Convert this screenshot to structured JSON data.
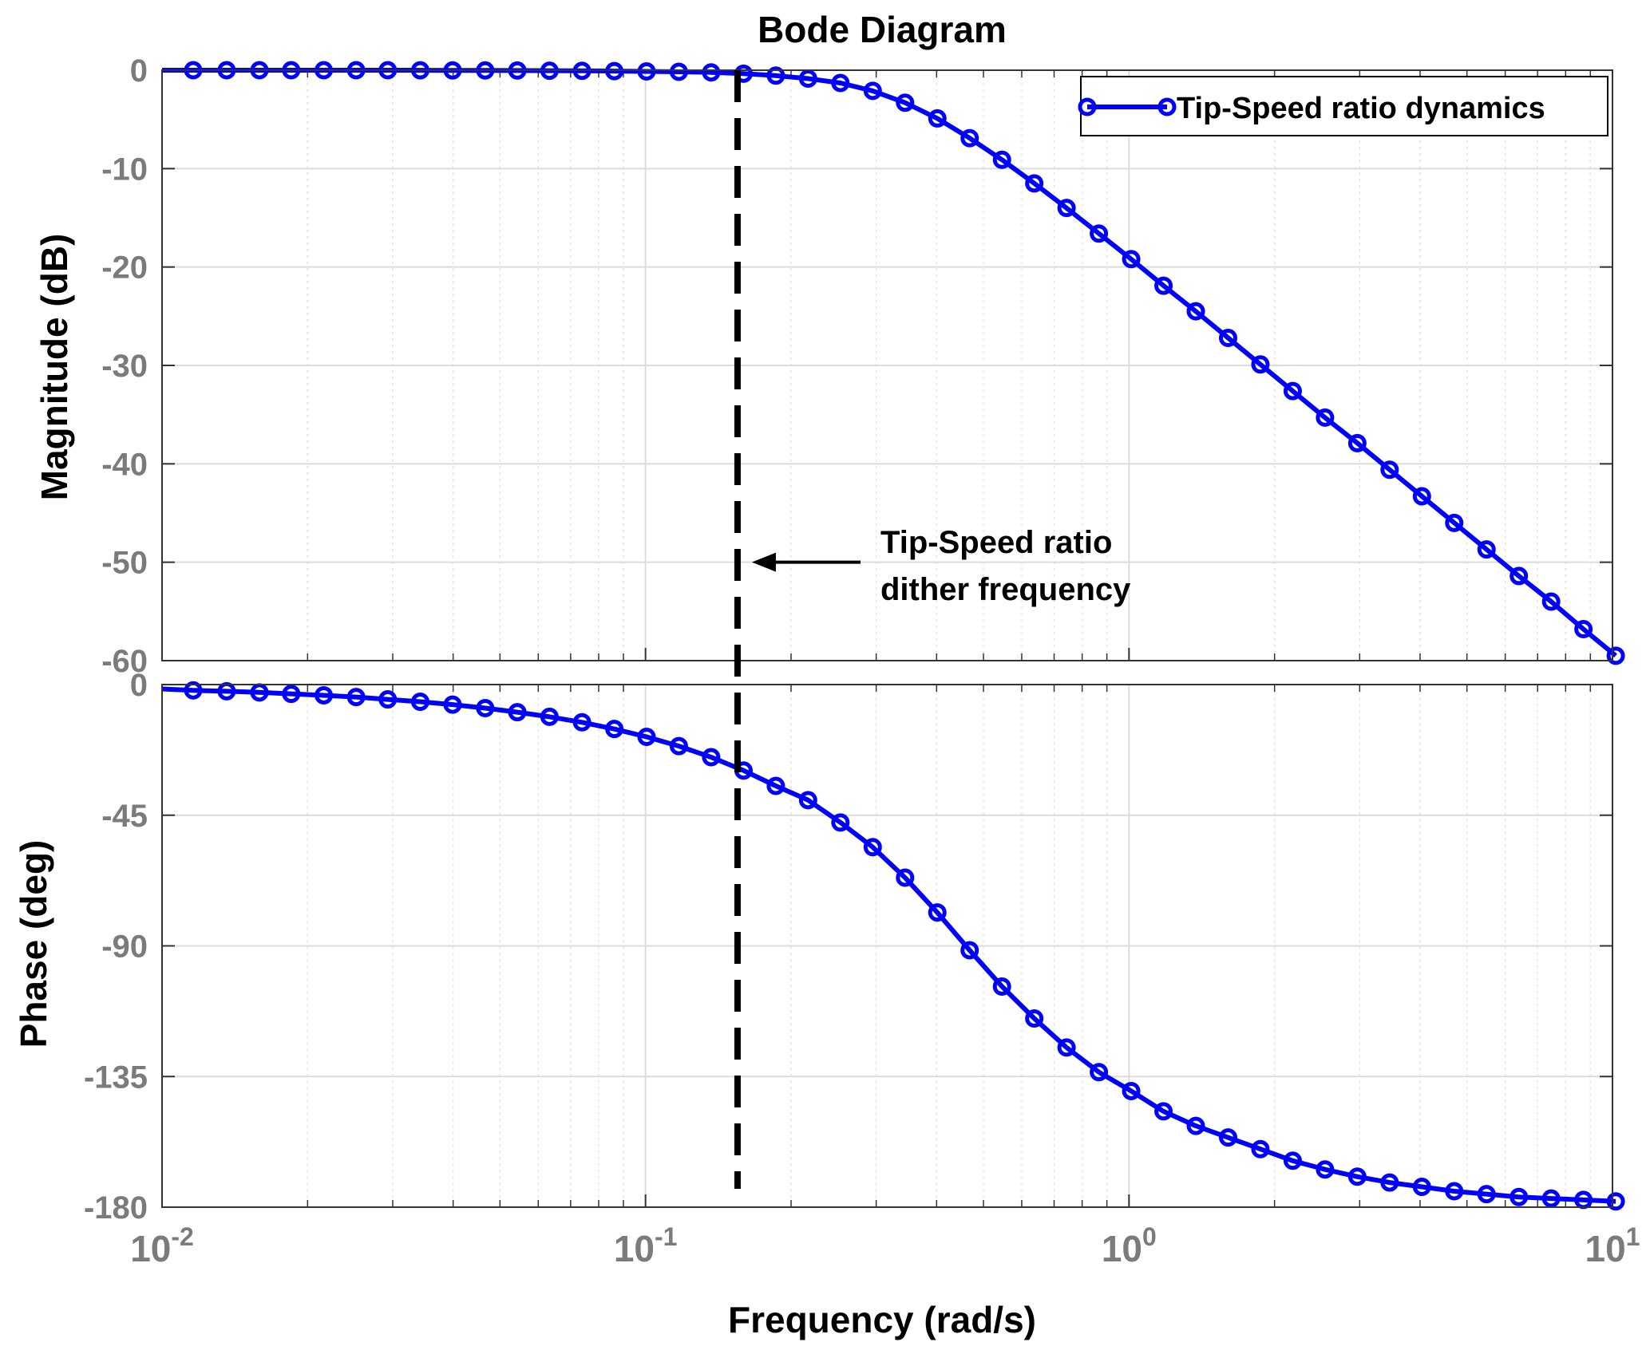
{
  "chart_data": {
    "type": "line",
    "title": "Bode Diagram",
    "xlabel": "Frequency  (rad/s)",
    "xscale": "log",
    "xlim": [
      0.01,
      10
    ],
    "x_ticks": [
      {
        "base": "10",
        "exp": "-2",
        "value": 0.01
      },
      {
        "base": "10",
        "exp": "-1",
        "value": 0.1
      },
      {
        "base": "10",
        "exp": "0",
        "value": 1
      },
      {
        "base": "10",
        "exp": "1",
        "value": 10
      }
    ],
    "series": [
      {
        "name": "Tip-Speed ratio dynamics",
        "color": "#0000ff",
        "marker": "circle"
      }
    ],
    "x": [
      0.01,
      0.0116,
      0.0136,
      0.0159,
      0.0185,
      0.0216,
      0.0252,
      0.0293,
      0.0342,
      0.0399,
      0.0466,
      0.0543,
      0.0633,
      0.0739,
      0.0862,
      0.1005,
      0.1172,
      0.1367,
      0.1595,
      0.186,
      0.2169,
      0.253,
      0.2951,
      0.3442,
      0.4014,
      0.4682,
      0.5461,
      0.6369,
      0.7428,
      0.8664,
      1.0105,
      1.1786,
      1.3746,
      1.6032,
      1.8698,
      2.1808,
      2.5435,
      2.9665,
      3.4599,
      4.0353,
      4.7064,
      5.4891,
      6.402,
      7.4667,
      8.7085,
      10.157
    ],
    "marker_start_index": 1,
    "panels": [
      {
        "name": "magnitude",
        "ylabel": "Magnitude (dB)",
        "ylim": [
          -60,
          0
        ],
        "yticks": [
          0,
          -10,
          -20,
          -30,
          -40,
          -50,
          -60
        ],
        "values": [
          0.0,
          0.0,
          0.0,
          0.0,
          0.0,
          0.0,
          0.0,
          0.0,
          -0.01,
          -0.02,
          -0.02,
          -0.03,
          -0.05,
          -0.06,
          -0.09,
          -0.12,
          -0.16,
          -0.22,
          -0.35,
          -0.55,
          -0.85,
          -1.3,
          -2.1,
          -3.3,
          -4.9,
          -6.9,
          -9.1,
          -11.5,
          -14.0,
          -16.6,
          -19.2,
          -21.9,
          -24.5,
          -27.2,
          -29.9,
          -32.6,
          -35.3,
          -37.9,
          -40.6,
          -43.3,
          -46.0,
          -48.7,
          -51.4,
          -54.0,
          -56.8,
          -59.5
        ]
      },
      {
        "name": "phase",
        "ylabel": "Phase (deg)",
        "ylim": [
          -180,
          0
        ],
        "yticks": [
          0,
          -45,
          -90,
          -135,
          -180
        ],
        "values": [
          -1.5,
          -2.0,
          -2.3,
          -2.7,
          -3.2,
          -3.7,
          -4.3,
          -5.1,
          -5.9,
          -6.9,
          -8.1,
          -9.5,
          -11.1,
          -13.0,
          -15.3,
          -18.0,
          -21.2,
          -25.0,
          -29.6,
          -34.9,
          -39.8,
          -47.5,
          -56.0,
          -66.5,
          -78.5,
          -91.5,
          -104.0,
          -115.0,
          -125.0,
          -133.5,
          -140.0,
          -147.0,
          -152.0,
          -156.0,
          -160.0,
          -164.0,
          -167.0,
          -169.5,
          -171.5,
          -173.0,
          -174.5,
          -175.5,
          -176.5,
          -177.0,
          -177.5,
          -178.0
        ]
      }
    ],
    "vertical_marker": {
      "x": 0.155,
      "style": "dashed",
      "color": "#000000"
    },
    "annotation": {
      "lines": [
        "Tip-Speed ratio",
        "dither frequency"
      ],
      "arrow_target_x": 0.155,
      "arrow_target_y": -50
    },
    "legend_location": "top-right",
    "grid": true
  }
}
